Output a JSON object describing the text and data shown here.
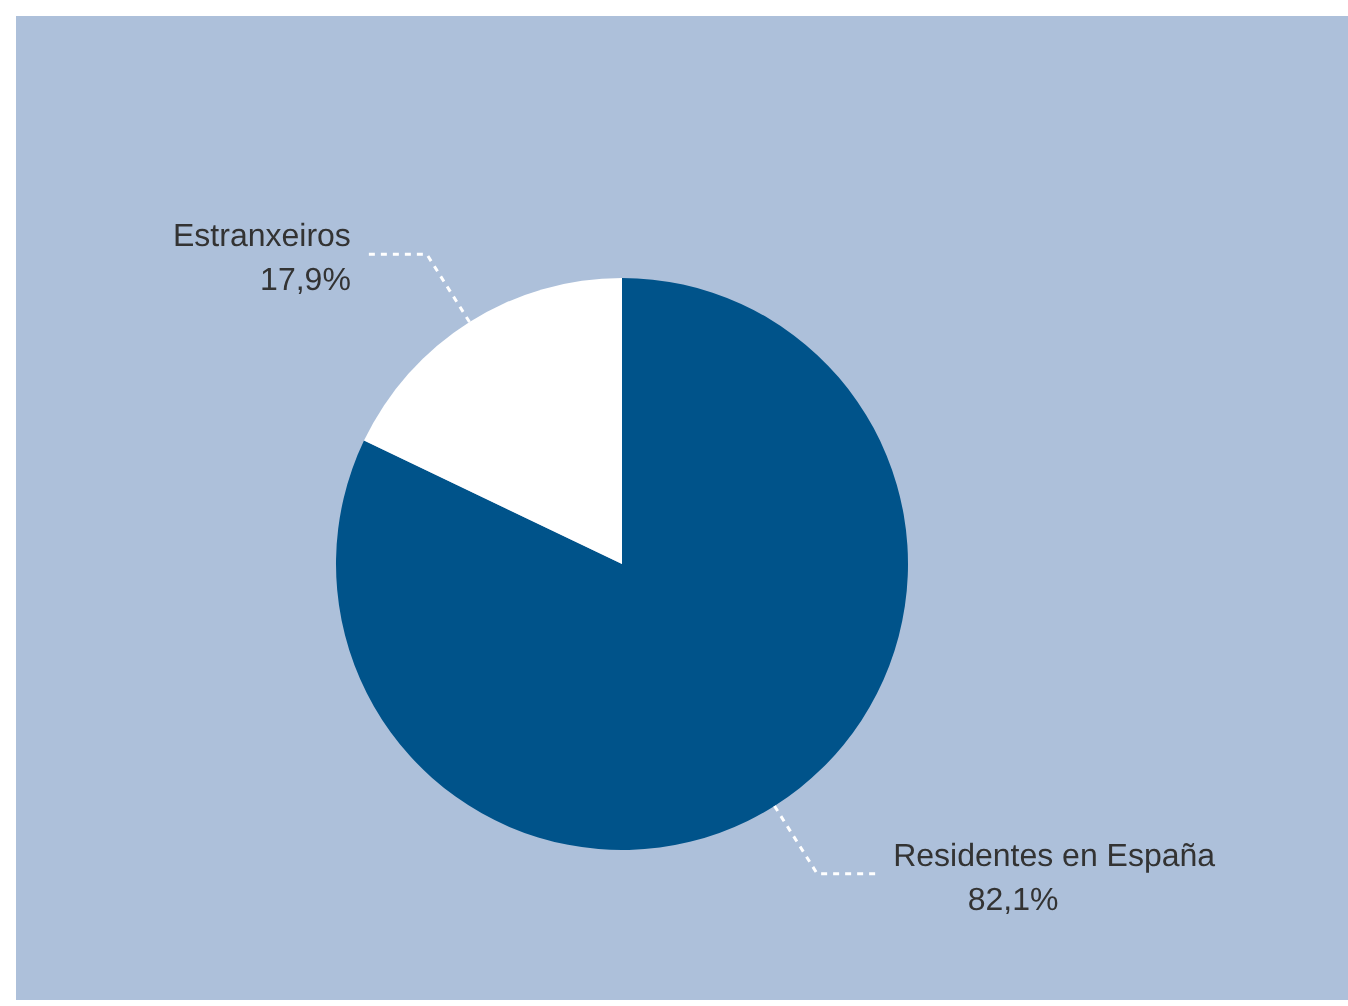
{
  "chart_data": {
    "type": "pie",
    "categories": [
      "Residentes en España",
      "Estranxeiros"
    ],
    "values": [
      82.1,
      17.9
    ],
    "colors": [
      "#00538a",
      "#ffffff"
    ],
    "value_labels": [
      "82,1%",
      "17,9%"
    ],
    "legend": false
  }
}
